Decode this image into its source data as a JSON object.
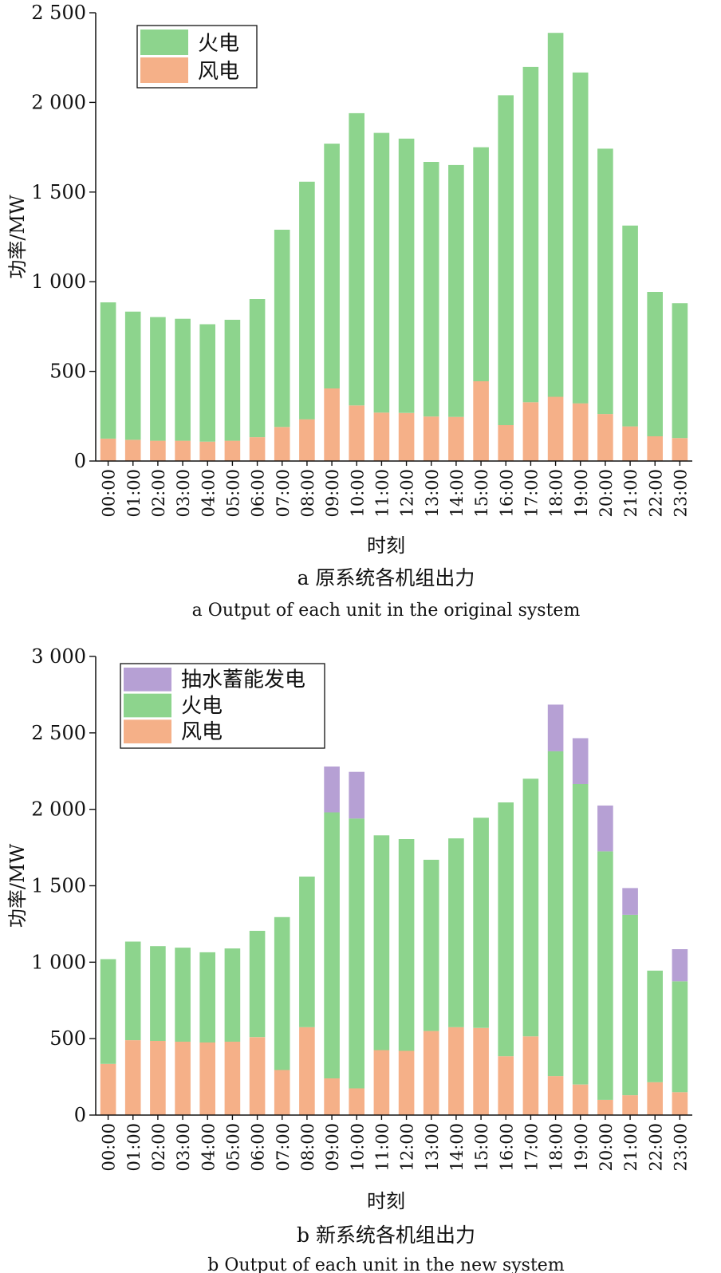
{
  "colors": {
    "thermal": "#8dd48d",
    "wind": "#f5b088",
    "pumped_storage": "#b6a0d4",
    "axis": "#111111"
  },
  "chart_data": [
    {
      "type": "bar",
      "stacked": true,
      "categories": [
        "00:00",
        "01:00",
        "02:00",
        "03:00",
        "04:00",
        "05:00",
        "06:00",
        "07:00",
        "08:00",
        "09:00",
        "10:00",
        "11:00",
        "12:00",
        "13:00",
        "14:00",
        "15:00",
        "16:00",
        "17:00",
        "18:00",
        "19:00",
        "20:00",
        "21:00",
        "22:00",
        "23:00"
      ],
      "series": [
        {
          "name": "风电",
          "color_key": "wind",
          "values": [
            125,
            118,
            113,
            113,
            108,
            113,
            133,
            190,
            233,
            405,
            310,
            270,
            268,
            248,
            246,
            445,
            200,
            328,
            358,
            322,
            262,
            193,
            138,
            128
          ]
        },
        {
          "name": "火电",
          "color_key": "thermal",
          "values": [
            760,
            715,
            690,
            680,
            655,
            675,
            770,
            1100,
            1325,
            1365,
            1630,
            1560,
            1530,
            1420,
            1405,
            1305,
            1840,
            1870,
            2030,
            1845,
            1480,
            1120,
            805,
            752
          ]
        }
      ],
      "legend_order": [
        "火电",
        "风电"
      ],
      "legend_position": "top-left",
      "ylim": [
        0,
        2500
      ],
      "yticks": [
        0,
        500,
        1000,
        1500,
        2000,
        2500
      ],
      "ytick_labels": [
        "0",
        "500",
        "1 000",
        "1 500",
        "2 000",
        "2 500"
      ],
      "ylabel": "功率/MW",
      "xlabel": "时刻",
      "caption_cn": "a  原系统各机组出力",
      "caption_en": "a  Output of each unit in the original system"
    },
    {
      "type": "bar",
      "stacked": true,
      "categories": [
        "00:00",
        "01:00",
        "02:00",
        "03:00",
        "04:00",
        "05:00",
        "06:00",
        "07:00",
        "08:00",
        "09:00",
        "10:00",
        "11:00",
        "12:00",
        "13:00",
        "14:00",
        "15:00",
        "16:00",
        "17:00",
        "18:00",
        "19:00",
        "20:00",
        "21:00",
        "22:00",
        "23:00"
      ],
      "series": [
        {
          "name": "风电",
          "color_key": "wind",
          "values": [
            335,
            490,
            485,
            480,
            475,
            480,
            510,
            295,
            575,
            240,
            175,
            425,
            420,
            550,
            575,
            570,
            385,
            515,
            255,
            200,
            100,
            130,
            215,
            150
          ]
        },
        {
          "name": "火电",
          "color_key": "thermal",
          "values": [
            685,
            645,
            620,
            615,
            590,
            610,
            695,
            1000,
            985,
            1740,
            1765,
            1405,
            1385,
            1120,
            1235,
            1375,
            1660,
            1685,
            2125,
            1965,
            1625,
            1180,
            730,
            725
          ]
        },
        {
          "name": "抽水蓄能发电",
          "color_key": "pumped_storage",
          "values": [
            0,
            0,
            0,
            0,
            0,
            0,
            0,
            0,
            0,
            300,
            305,
            0,
            0,
            0,
            0,
            0,
            0,
            0,
            305,
            300,
            300,
            175,
            0,
            210
          ]
        }
      ],
      "legend_order": [
        "抽水蓄能发电",
        "火电",
        "风电"
      ],
      "legend_position": "top-left",
      "ylim": [
        0,
        3000
      ],
      "yticks": [
        0,
        500,
        1000,
        1500,
        2000,
        2500,
        3000
      ],
      "ytick_labels": [
        "0",
        "500",
        "1 000",
        "1 500",
        "2 000",
        "2 500",
        "3 000"
      ],
      "ylabel": "功率/MW",
      "xlabel": "时刻",
      "caption_cn": "b  新系统各机组出力",
      "caption_en": "b  Output of each unit in the new system"
    }
  ]
}
